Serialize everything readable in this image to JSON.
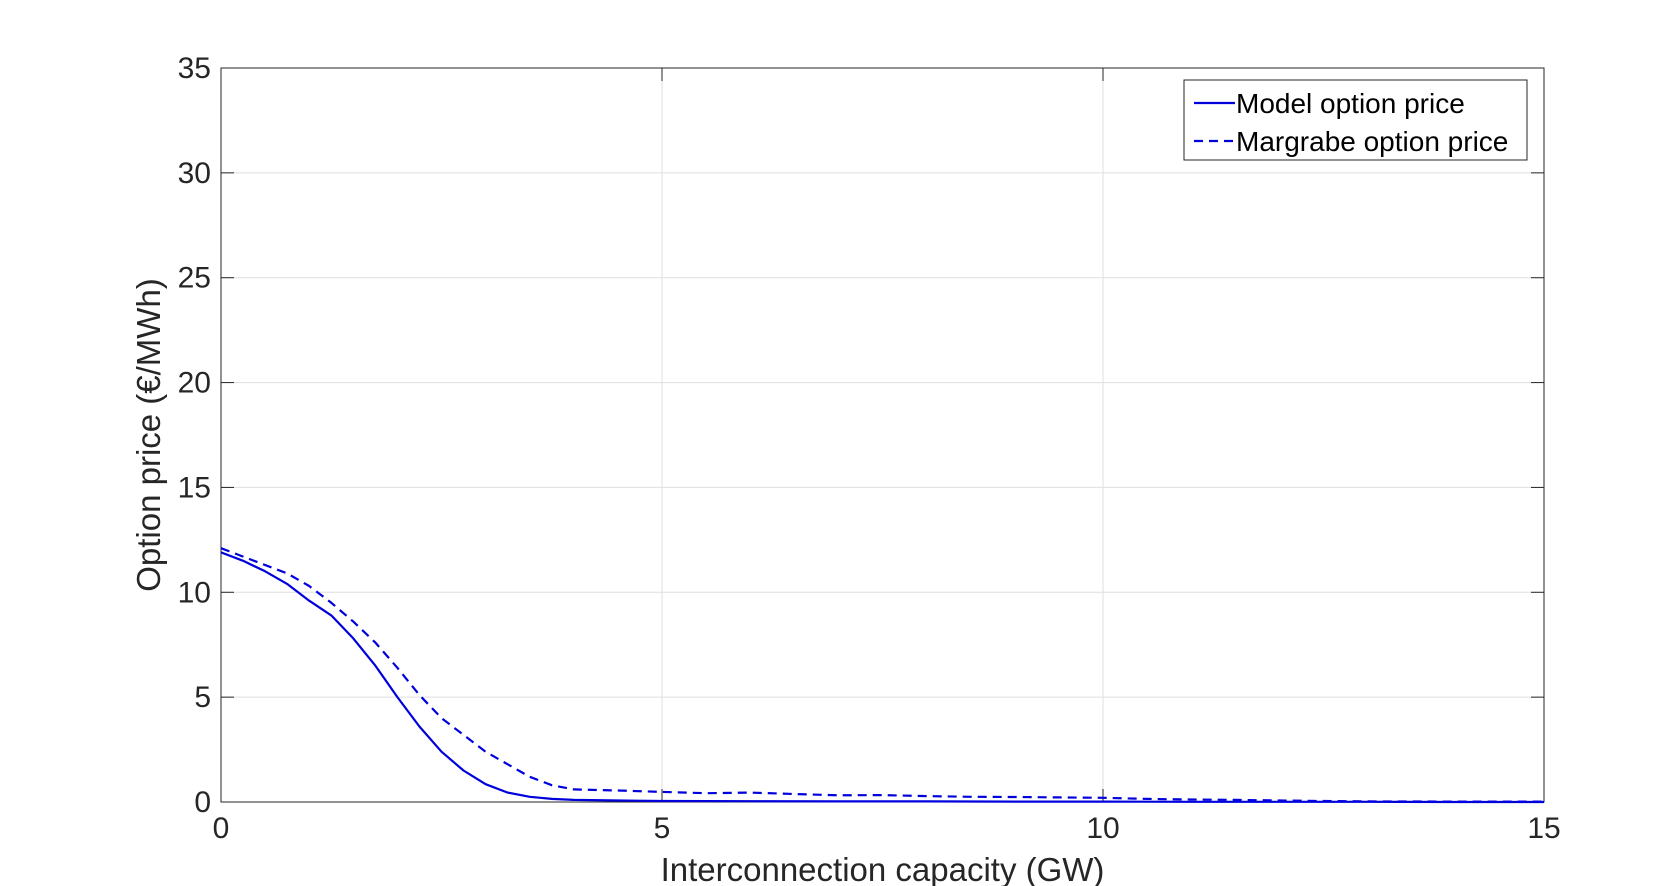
{
  "chart_data": {
    "type": "line",
    "xlabel": "Interconnection capacity (GW)",
    "ylabel": "Option price (€/MWh)",
    "xlim": [
      0,
      15
    ],
    "ylim": [
      0,
      35
    ],
    "x_ticks": [
      0,
      5,
      10,
      15
    ],
    "y_ticks": [
      0,
      5,
      10,
      15,
      20,
      25,
      30,
      35
    ],
    "x_tick_labels": [
      "0",
      "5",
      "10",
      "15"
    ],
    "y_tick_labels": [
      "0",
      "5",
      "10",
      "15",
      "20",
      "25",
      "30",
      "35"
    ],
    "grid": true,
    "legend_position": "top-right",
    "series": [
      {
        "name": "Model option price",
        "line_style": "solid",
        "color": "#0000dd",
        "x": [
          0,
          0.25,
          0.5,
          0.75,
          1.0,
          1.25,
          1.5,
          1.75,
          2.0,
          2.25,
          2.5,
          2.75,
          3.0,
          3.25,
          3.5,
          3.75,
          4.0,
          4.5,
          5.0,
          6.0,
          7.0,
          8.0,
          9.0,
          10.0,
          11.0,
          12.0,
          13.0,
          14.0,
          15.0
        ],
        "y": [
          11.9,
          11.5,
          11.0,
          10.4,
          9.6,
          8.9,
          7.8,
          6.5,
          5.0,
          3.6,
          2.4,
          1.5,
          0.85,
          0.45,
          0.25,
          0.15,
          0.1,
          0.07,
          0.05,
          0.04,
          0.03,
          0.03,
          0.02,
          0.02,
          0.01,
          0.01,
          0.01,
          0.0,
          0.0
        ]
      },
      {
        "name": "Margrabe option price",
        "line_style": "dashed",
        "color": "#0000dd",
        "x": [
          0,
          0.25,
          0.5,
          0.75,
          1.0,
          1.25,
          1.5,
          1.75,
          2.0,
          2.25,
          2.5,
          2.75,
          3.0,
          3.25,
          3.5,
          3.75,
          4.0,
          4.5,
          5.0,
          5.5,
          6.0,
          6.5,
          7.0,
          7.5,
          8.0,
          8.5,
          9.0,
          9.5,
          10.0,
          10.5,
          11.0,
          11.5,
          12.0,
          12.5,
          13.0,
          14.0,
          15.0
        ],
        "y": [
          12.1,
          11.7,
          11.3,
          10.9,
          10.3,
          9.5,
          8.6,
          7.6,
          6.4,
          5.1,
          4.0,
          3.2,
          2.4,
          1.8,
          1.2,
          0.8,
          0.6,
          0.55,
          0.48,
          0.42,
          0.45,
          0.38,
          0.32,
          0.33,
          0.28,
          0.25,
          0.24,
          0.22,
          0.2,
          0.15,
          0.12,
          0.1,
          0.07,
          0.05,
          0.03,
          0.02,
          0.02
        ]
      }
    ]
  }
}
